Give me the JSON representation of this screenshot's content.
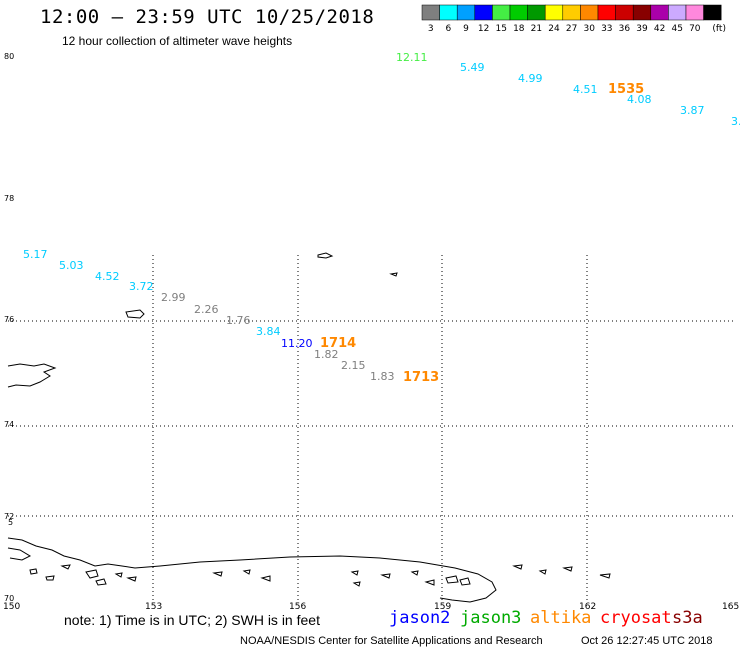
{
  "header": {
    "title": "12:00 – 23:59 UTC 10/25/2018",
    "subtitle": "12 hour collection of altimeter wave heights"
  },
  "legend": {
    "unit": "(ft)",
    "bins": [
      {
        "label": "3",
        "color": "#7f7f7f"
      },
      {
        "label": "6",
        "color": "#00ffff"
      },
      {
        "label": "9",
        "color": "#00a0ff"
      },
      {
        "label": "12",
        "color": "#0000ff"
      },
      {
        "label": "15",
        "color": "#44ee44"
      },
      {
        "label": "18",
        "color": "#00cc00"
      },
      {
        "label": "21",
        "color": "#009900"
      },
      {
        "label": "24",
        "color": "#ffff00"
      },
      {
        "label": "27",
        "color": "#ffcc00"
      },
      {
        "label": "30",
        "color": "#ff8800"
      },
      {
        "label": "33",
        "color": "#ff0000"
      },
      {
        "label": "36",
        "color": "#cc0000"
      },
      {
        "label": "39",
        "color": "#880000"
      },
      {
        "label": "42",
        "color": "#aa00aa"
      },
      {
        "label": "45",
        "color": "#ccaaff"
      },
      {
        "label": "70",
        "color": "#ff88dd"
      },
      {
        "label": "",
        "color": "#000000"
      }
    ]
  },
  "axes": {
    "lat_labels": [
      "80",
      "78",
      "76",
      "74",
      "72",
      "70"
    ],
    "lon_labels": [
      "150",
      "153",
      "156",
      "159",
      "162",
      "165"
    ],
    "extra_tick": "5"
  },
  "observations": [
    {
      "label": "12.11",
      "color": "#44ee44"
    },
    {
      "label": "5.49",
      "color": "#00ccff"
    },
    {
      "label": "4.99",
      "color": "#00ccff"
    },
    {
      "label": "4.51",
      "color": "#00ccff"
    },
    {
      "label": "4.08",
      "color": "#00ccff"
    },
    {
      "label": "3.87",
      "color": "#00ccff"
    },
    {
      "label": "3.",
      "color": "#00ccff"
    },
    {
      "label": "5.17",
      "color": "#00ccff"
    },
    {
      "label": "5.03",
      "color": "#00ccff"
    },
    {
      "label": "4.52",
      "color": "#00ccff"
    },
    {
      "label": "3.72",
      "color": "#00ccff"
    },
    {
      "label": "2.99",
      "color": "#7f7f7f"
    },
    {
      "label": "2.26",
      "color": "#7f7f7f"
    },
    {
      "label": "1.76",
      "color": "#7f7f7f"
    },
    {
      "label": "3.84",
      "color": "#00ccff"
    },
    {
      "label": "11.20",
      "color": "#0000ff"
    },
    {
      "label": "1.82",
      "color": "#7f7f7f"
    },
    {
      "label": "2.15",
      "color": "#7f7f7f"
    },
    {
      "label": "1.83",
      "color": "#7f7f7f"
    }
  ],
  "pass_times": [
    {
      "label": "1535",
      "color": "#ff8800"
    },
    {
      "label": "1714",
      "color": "#ff8800"
    },
    {
      "label": "1713",
      "color": "#ff8800"
    }
  ],
  "footer": {
    "note": "note: 1) Time is in UTC; 2) SWH is in feet",
    "satellites": [
      {
        "label": "jason2",
        "color": "#0000ff"
      },
      {
        "label": "jason3",
        "color": "#00aa00"
      },
      {
        "label": "altika",
        "color": "#ff8800"
      },
      {
        "label": "cryosat",
        "color": "#ff0000"
      },
      {
        "label": "s3a",
        "color": "#880000"
      }
    ],
    "credit": "NOAA/NESDIS Center for Satellite Applications and Research",
    "timestamp": "Oct 26 12:27:45 UTC 2018"
  }
}
